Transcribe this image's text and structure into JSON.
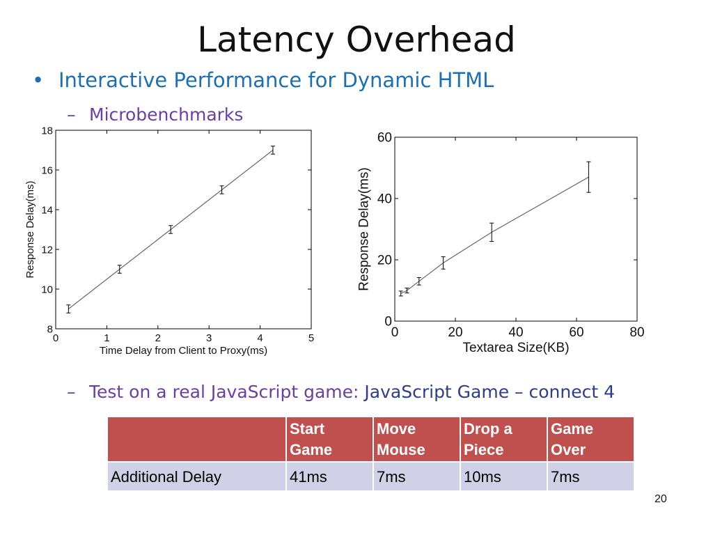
{
  "slide": {
    "title": "Latency Overhead",
    "bullet": "Interactive Performance for Dynamic HTML",
    "sub1": "Microbenchmarks",
    "sub2_lead": "Test on a real JavaScript game: ",
    "sub2_tail": "JavaScript Game – connect 4",
    "page_number": "20"
  },
  "chart_data": [
    {
      "type": "line",
      "xlabel": "Time Delay from Client to Proxy(ms)",
      "ylabel": "Response Delay(ms)",
      "xlim": [
        0,
        5
      ],
      "ylim": [
        8,
        18
      ],
      "xticks": [
        0,
        1,
        2,
        3,
        4,
        5
      ],
      "yticks": [
        8,
        10,
        12,
        14,
        16,
        18
      ],
      "grid": false,
      "series": [
        {
          "x": [
            0.25,
            1.25,
            2.25,
            3.25,
            4.25
          ],
          "y": [
            9.0,
            11.0,
            13.0,
            15.0,
            17.0
          ],
          "err": [
            0.2,
            0.2,
            0.2,
            0.2,
            0.2
          ]
        }
      ]
    },
    {
      "type": "line",
      "xlabel": "Textarea Size(KB)",
      "ylabel": "Response Delay(ms)",
      "xlim": [
        0,
        80
      ],
      "ylim": [
        0,
        60
      ],
      "xticks": [
        0,
        20,
        40,
        60,
        80
      ],
      "yticks": [
        0,
        20,
        40,
        60
      ],
      "grid": false,
      "series": [
        {
          "x": [
            2,
            4,
            8,
            16,
            32,
            64
          ],
          "y": [
            9.0,
            10.0,
            13.0,
            19.0,
            29.0,
            47.0
          ],
          "err": [
            0.8,
            0.8,
            1.2,
            2.0,
            3.0,
            5.0
          ]
        }
      ]
    }
  ],
  "table": {
    "headers": [
      "",
      "Start\nGame",
      "Move\nMouse",
      "Drop a\nPiece",
      "Game\nOver"
    ],
    "rows": [
      [
        "Additional Delay",
        "41ms",
        "7ms",
        "10ms",
        "7ms"
      ]
    ]
  }
}
